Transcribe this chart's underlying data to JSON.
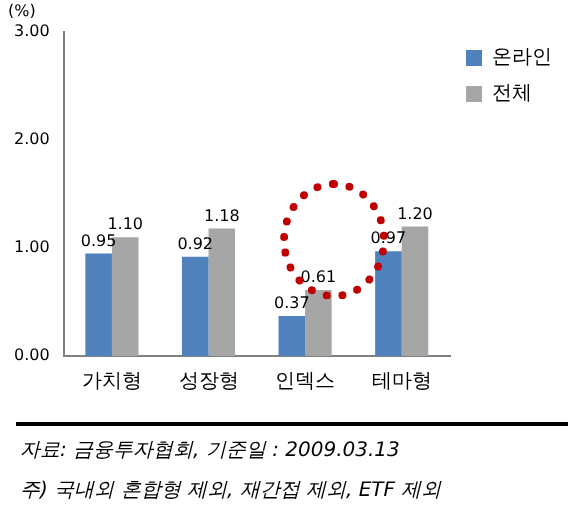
{
  "chart_data": {
    "type": "bar",
    "ylabel": "(%)",
    "categories": [
      "가치형",
      "성장형",
      "인덱스",
      "테마형"
    ],
    "series": [
      {
        "name": "온라인",
        "color": "#4f81bd",
        "values": [
          0.95,
          0.92,
          0.37,
          0.97
        ],
        "value_labels": [
          "0.95",
          "0.92",
          "0.37",
          "0.97"
        ]
      },
      {
        "name": "전체",
        "color": "#a6a6a6",
        "values": [
          1.1,
          1.18,
          0.61,
          1.2
        ],
        "value_labels": [
          "1.10",
          "1.18",
          "0.61",
          "1.20"
        ]
      }
    ],
    "ylim": [
      0,
      3
    ],
    "yticks": [
      {
        "value": 0,
        "label": "0.00"
      },
      {
        "value": 1,
        "label": "1.00"
      },
      {
        "value": 2,
        "label": "2.00"
      },
      {
        "value": 3,
        "label": "3.00"
      }
    ],
    "legend": "top right",
    "grid": false,
    "annotations": [
      "자료: 금융투자협회, 기준일 : 2009.03.13",
      "주) 국내외 혼합형 제외, 재간접 제외, ETF 제외"
    ]
  }
}
